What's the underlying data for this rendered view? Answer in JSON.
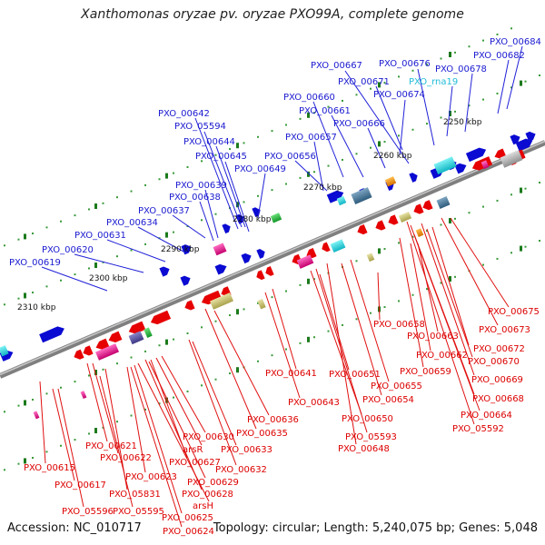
{
  "title": "Xanthomonas oryzae pv. oryzae PXO99A, complete genome",
  "accession": "Accession: NC_010717",
  "topology": "Topology: circular; Length: 5,240,075 bp; Genes: 5,048",
  "colors": {
    "backbone": "#8c8c8c",
    "forward_gene": "#0a0ad2",
    "reverse_gene": "#e60000",
    "rna_label": "#22bcd8",
    "tick_major": "#1b7a1b",
    "tick_minor": "#3a9a3a"
  },
  "scale_labels": [
    "2250 kbp",
    "2260 kbp",
    "2270 kbp",
    "2280 kbp",
    "2290 kbp",
    "2300 kbp",
    "2310 kbp"
  ],
  "labels_top": [
    "PXO_00684",
    "PXO_00682",
    "PXO_00678",
    "PXO_00676",
    "PXO_00667",
    "PXO_rna19",
    "PXO_00671",
    "PXO_00674",
    "PXO_00660",
    "PXO_00661",
    "PXO_00666",
    "PXO_00642",
    "PXO_05594",
    "PXO_00644",
    "PXO_00645",
    "PXO_00657",
    "PXO_00656",
    "PXO_00649",
    "PXO_00639",
    "PXO_00638",
    "PXO_00637",
    "PXO_00634",
    "PXO_00631",
    "PXO_00620",
    "PXO_00619"
  ],
  "labels_bottom": [
    "PXO_00675",
    "PXO_00673",
    "PXO_00658",
    "PXO_00663",
    "PXO_00672",
    "PXO_00662",
    "PXO_00670",
    "PXO_00659",
    "PXO_00669",
    "PXO_00641",
    "PXO_00651",
    "PXO_00655",
    "PXO_00668",
    "PXO_00643",
    "PXO_00654",
    "PXO_00664",
    "PXO_00650",
    "PXO_05592",
    "PXO_00636",
    "PXO_00635",
    "PXO_05593",
    "PXO_00630",
    "PXO_00648",
    "PXO_00621",
    "arsR",
    "PXO_00633",
    "PXO_00622",
    "PXO_00627",
    "PXO_00615",
    "PXO_00632",
    "PXO_00623",
    "PXO_00629",
    "PXO_00617",
    "PXO_05831",
    "PXO_00628",
    "arsH",
    "PXO_05596",
    "PXO_05595",
    "PXO_00625",
    "PXO_00624"
  ]
}
